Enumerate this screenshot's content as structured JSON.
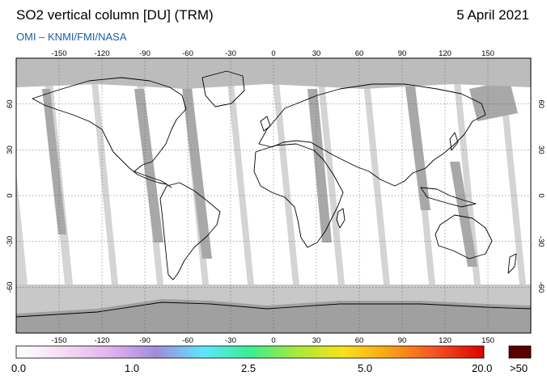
{
  "header": {
    "title": "SO2 vertical column [DU] (TRM)",
    "date": "5 April 2021",
    "credit": "OMI  –  KNMI/FMI/NASA"
  },
  "map": {
    "lon_ticks": [
      "-150",
      "-120",
      "-90",
      "-60",
      "-30",
      "0",
      "30",
      "60",
      "90",
      "120",
      "150"
    ],
    "lat_ticks": [
      "60",
      "30",
      "0",
      "-30",
      "-60"
    ],
    "colors": {
      "ocean": "#ffffff",
      "gap": "#d4d4d4",
      "overlap": "#a8a8a8",
      "polar": "#a0a0a0",
      "coast": "#000000"
    }
  },
  "colorbar": {
    "labels": [
      "0.0",
      "1.0",
      "2.5",
      "5.0",
      "20.0"
    ],
    "overflow_label": ">50",
    "overflow_color": "#5a0000",
    "gradient": [
      "#ffffff",
      "#f4ddf4",
      "#e3b2ee",
      "#a08cdc",
      "#5fe4ff",
      "#38f090",
      "#a8e83a",
      "#f8e21a",
      "#f8a018",
      "#f25022",
      "#dd0000"
    ]
  }
}
